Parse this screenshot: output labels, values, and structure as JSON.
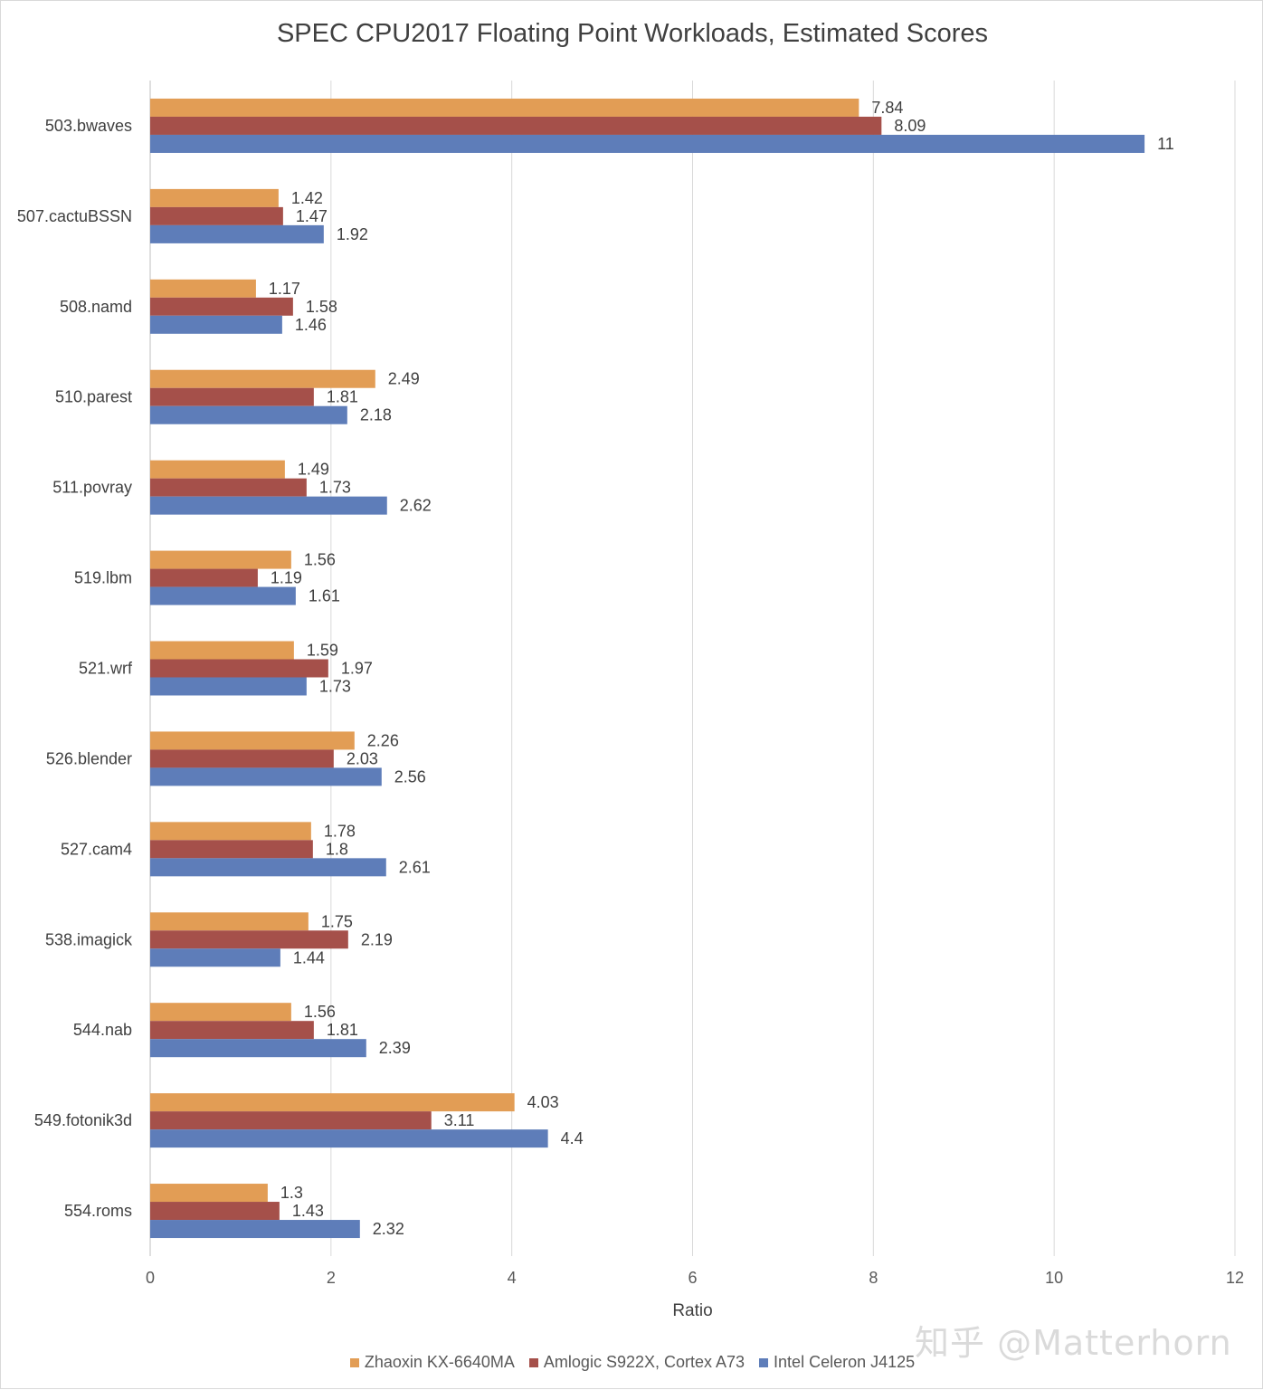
{
  "chart_data": {
    "type": "bar",
    "orientation": "horizontal",
    "title": "SPEC CPU2017 Floating Point Workloads, Estimated Scores",
    "xlabel": "Ratio",
    "ylabel": "",
    "xlim": [
      0,
      12
    ],
    "xticks": [
      "0",
      "2",
      "4",
      "6",
      "8",
      "10",
      "12"
    ],
    "grid": true,
    "legend_position": "bottom",
    "categories": [
      "503.bwaves",
      "507.cactuBSSN",
      "508.namd",
      "510.parest",
      "511.povray",
      "519.lbm",
      "521.wrf",
      "526.blender",
      "527.cam4",
      "538.imagick",
      "544.nab",
      "549.fotonik3d",
      "554.roms"
    ],
    "series": [
      {
        "name": "Zhaoxin KX-6640MA",
        "color": "#E29D55",
        "values": [
          7.84,
          1.42,
          1.17,
          2.49,
          1.49,
          1.56,
          1.59,
          2.26,
          1.78,
          1.75,
          1.56,
          4.03,
          1.3
        ]
      },
      {
        "name": "Amlogic S922X, Cortex A73",
        "color": "#A5504A",
        "values": [
          8.09,
          1.47,
          1.58,
          1.81,
          1.73,
          1.19,
          1.97,
          2.03,
          1.8,
          2.19,
          1.81,
          3.11,
          1.43
        ]
      },
      {
        "name": "Intel Celeron J4125",
        "color": "#5E7DB9",
        "values": [
          11,
          1.92,
          1.46,
          2.18,
          2.62,
          1.61,
          1.73,
          2.56,
          2.61,
          1.44,
          2.39,
          4.4,
          2.32
        ]
      }
    ]
  },
  "watermark": "知乎 @Matterhorn"
}
